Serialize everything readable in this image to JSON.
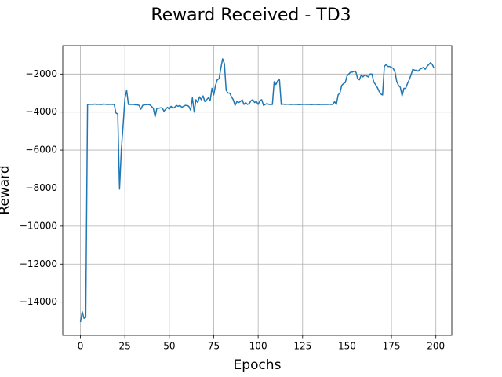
{
  "chart_data": {
    "type": "line",
    "title": "Reward Received - TD3",
    "x_label": "Epochs",
    "y_label": "Reward",
    "xlim": [
      -9.95,
      208.95
    ],
    "ylim": [
      -15750,
      -500
    ],
    "xticks": [
      0,
      25,
      50,
      75,
      100,
      125,
      150,
      175,
      200
    ],
    "yticks": [
      {
        "value": -14000,
        "label": "−14000"
      },
      {
        "value": -12000,
        "label": "−12000"
      },
      {
        "value": -10000,
        "label": "−10000"
      },
      {
        "value": -8000,
        "label": "−8000"
      },
      {
        "value": -6000,
        "label": "−6000"
      },
      {
        "value": -4000,
        "label": "−4000"
      },
      {
        "value": -2000,
        "label": "−2000"
      }
    ],
    "grid": true,
    "x": [
      0,
      1,
      2,
      3,
      4,
      5,
      6,
      7,
      8,
      9,
      10,
      11,
      12,
      13,
      14,
      15,
      16,
      17,
      18,
      19,
      20,
      21,
      22,
      23,
      24,
      25,
      26,
      27,
      28,
      29,
      30,
      31,
      32,
      33,
      34,
      35,
      36,
      37,
      38,
      39,
      40,
      41,
      42,
      43,
      44,
      45,
      46,
      47,
      48,
      49,
      50,
      51,
      52,
      53,
      54,
      55,
      56,
      57,
      58,
      59,
      60,
      61,
      62,
      63,
      64,
      65,
      66,
      67,
      68,
      69,
      70,
      71,
      72,
      73,
      74,
      75,
      76,
      77,
      78,
      79,
      80,
      81,
      82,
      83,
      84,
      85,
      86,
      87,
      88,
      89,
      90,
      91,
      92,
      93,
      94,
      95,
      96,
      97,
      98,
      99,
      100,
      101,
      102,
      103,
      104,
      105,
      106,
      107,
      108,
      109,
      110,
      111,
      112,
      113,
      114,
      115,
      116,
      117,
      118,
      119,
      120,
      121,
      122,
      123,
      124,
      125,
      126,
      127,
      128,
      129,
      130,
      131,
      132,
      133,
      134,
      135,
      136,
      137,
      138,
      139,
      140,
      141,
      142,
      143,
      144,
      145,
      146,
      147,
      148,
      149,
      150,
      151,
      152,
      153,
      154,
      155,
      156,
      157,
      158,
      159,
      160,
      161,
      162,
      163,
      164,
      165,
      166,
      167,
      168,
      169,
      170,
      171,
      172,
      173,
      174,
      175,
      176,
      177,
      178,
      179,
      180,
      181,
      182,
      183,
      184,
      185,
      186,
      187,
      188,
      189,
      190,
      191,
      192,
      193,
      194,
      195,
      196,
      197,
      198,
      199
    ],
    "series": [
      {
        "color": "#1f77b4",
        "values": [
          -15050,
          -14500,
          -14850,
          -14800,
          -3600,
          -3600,
          -3590,
          -3600,
          -3580,
          -3600,
          -3590,
          -3600,
          -3600,
          -3580,
          -3590,
          -3600,
          -3600,
          -3590,
          -3600,
          -3600,
          -4050,
          -4100,
          -8050,
          -6000,
          -4700,
          -3300,
          -2850,
          -3600,
          -3600,
          -3600,
          -3600,
          -3620,
          -3620,
          -3650,
          -3850,
          -3650,
          -3620,
          -3610,
          -3600,
          -3620,
          -3700,
          -3800,
          -4250,
          -3800,
          -3800,
          -3780,
          -3780,
          -3950,
          -3850,
          -3750,
          -3850,
          -3700,
          -3800,
          -3750,
          -3650,
          -3700,
          -3650,
          -3750,
          -3700,
          -3650,
          -3650,
          -3700,
          -3900,
          -3250,
          -4000,
          -3350,
          -3500,
          -3200,
          -3350,
          -3150,
          -3450,
          -3350,
          -3250,
          -3400,
          -2750,
          -3100,
          -2600,
          -2300,
          -2250,
          -1700,
          -1200,
          -1450,
          -2850,
          -3000,
          -3000,
          -3200,
          -3350,
          -3650,
          -3450,
          -3500,
          -3450,
          -3350,
          -3600,
          -3500,
          -3600,
          -3550,
          -3400,
          -3350,
          -3500,
          -3450,
          -3600,
          -3400,
          -3350,
          -3650,
          -3600,
          -3550,
          -3600,
          -3600,
          -3600,
          -2400,
          -2550,
          -2350,
          -2300,
          -3600,
          -3580,
          -3600,
          -3590,
          -3590,
          -3600,
          -3600,
          -3590,
          -3600,
          -3600,
          -3610,
          -3600,
          -3600,
          -3590,
          -3600,
          -3600,
          -3600,
          -3610,
          -3600,
          -3600,
          -3600,
          -3610,
          -3600,
          -3600,
          -3600,
          -3600,
          -3600,
          -3590,
          -3600,
          -3600,
          -3450,
          -3600,
          -3100,
          -3000,
          -2600,
          -2500,
          -2450,
          -2100,
          -2000,
          -1900,
          -1900,
          -1850,
          -1900,
          -2250,
          -2300,
          -2050,
          -2150,
          -2050,
          -2100,
          -2150,
          -2000,
          -2000,
          -2400,
          -2550,
          -2700,
          -2900,
          -3050,
          -3100,
          -1600,
          -1500,
          -1600,
          -1600,
          -1650,
          -1700,
          -1900,
          -2400,
          -2600,
          -2700,
          -3150,
          -2750,
          -2750,
          -2500,
          -2300,
          -2050,
          -1750,
          -1800,
          -1800,
          -1850,
          -1750,
          -1700,
          -1650,
          -1750,
          -1600,
          -1500,
          -1400,
          -1500,
          -1700
        ]
      }
    ]
  }
}
